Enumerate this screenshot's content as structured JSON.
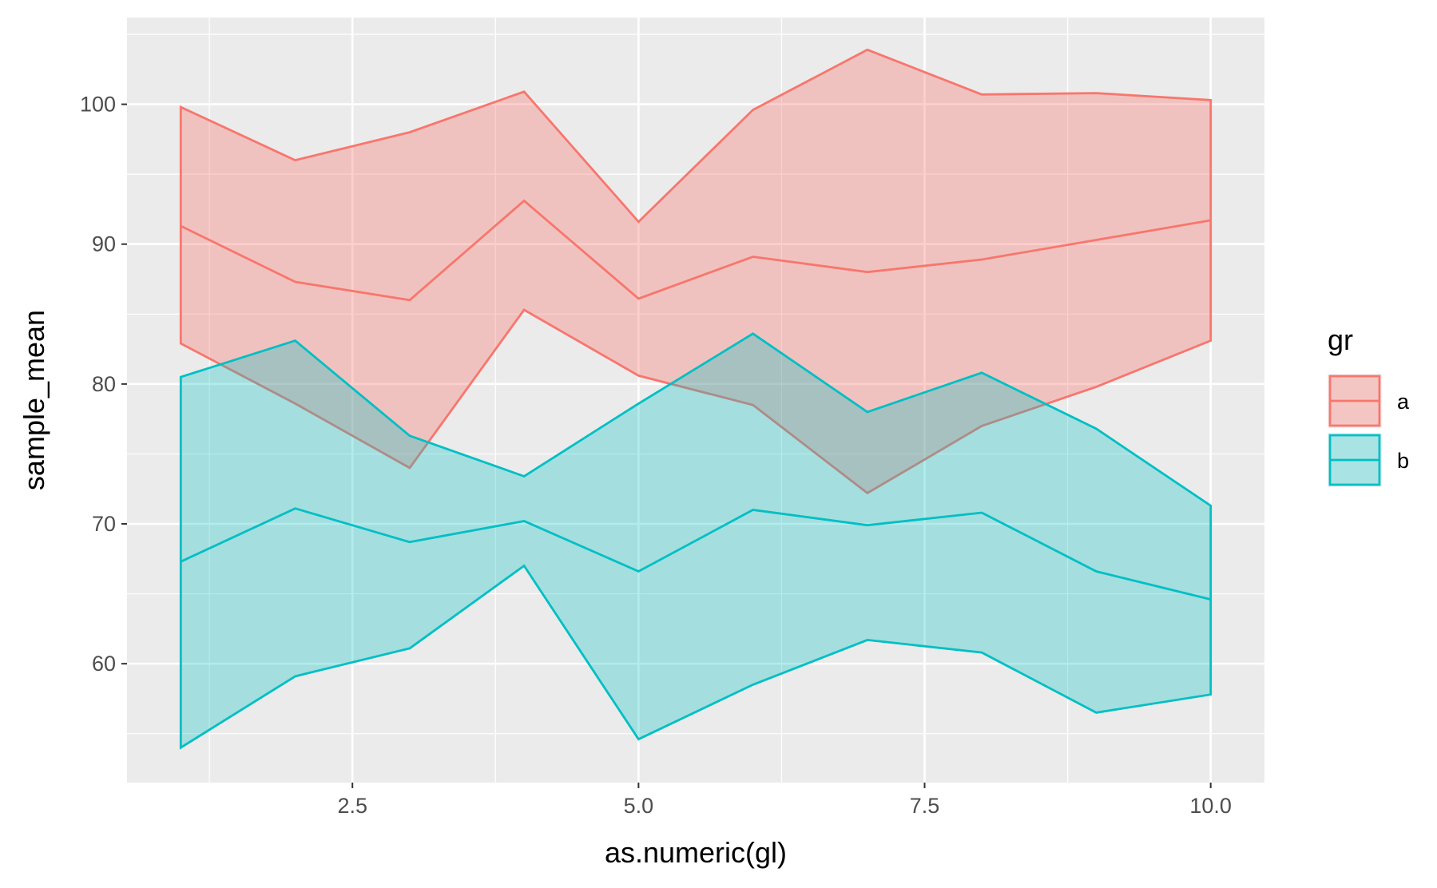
{
  "chart_data": {
    "type": "area",
    "title": "",
    "xlabel": "as.numeric(gl)",
    "ylabel": "sample_mean",
    "xlim": [
      0.53,
      10.47
    ],
    "ylim": [
      51.5,
      106.2
    ],
    "x_ticks": [
      2.5,
      5.0,
      7.5,
      10.0
    ],
    "x_tick_labels": [
      "2.5",
      "5.0",
      "7.5",
      "10.0"
    ],
    "y_ticks": [
      60,
      70,
      80,
      90,
      100
    ],
    "y_tick_labels": [
      "60",
      "70",
      "80",
      "90",
      "100"
    ],
    "grid": true,
    "legend": {
      "title": "gr",
      "position": "right"
    },
    "x": [
      1,
      2,
      3,
      4,
      5,
      6,
      7,
      8,
      9,
      10
    ],
    "series": [
      {
        "name": "a",
        "color": "#F8766D",
        "fill": "#F8766D",
        "fill_opacity": 0.35,
        "mean": [
          91.3,
          87.3,
          86.0,
          93.1,
          86.1,
          89.1,
          88.0,
          88.9,
          90.3,
          91.7
        ],
        "upper": [
          99.8,
          96.0,
          98.0,
          100.9,
          91.6,
          99.6,
          103.9,
          100.7,
          100.8,
          100.3
        ],
        "lower": [
          82.9,
          78.6,
          74.0,
          85.3,
          80.6,
          78.5,
          72.2,
          77.0,
          79.8,
          83.1
        ]
      },
      {
        "name": "b",
        "color": "#00BFC4",
        "fill": "#00BFC4",
        "fill_opacity": 0.3,
        "mean": [
          67.3,
          71.1,
          68.7,
          70.2,
          66.6,
          71.0,
          69.9,
          70.8,
          66.6,
          64.6
        ],
        "upper": [
          80.5,
          83.1,
          76.3,
          73.4,
          78.6,
          83.6,
          78.0,
          80.8,
          76.8,
          71.3
        ],
        "lower": [
          54.0,
          59.1,
          61.1,
          67.0,
          54.6,
          58.5,
          61.7,
          60.8,
          56.5,
          57.8
        ]
      }
    ]
  }
}
